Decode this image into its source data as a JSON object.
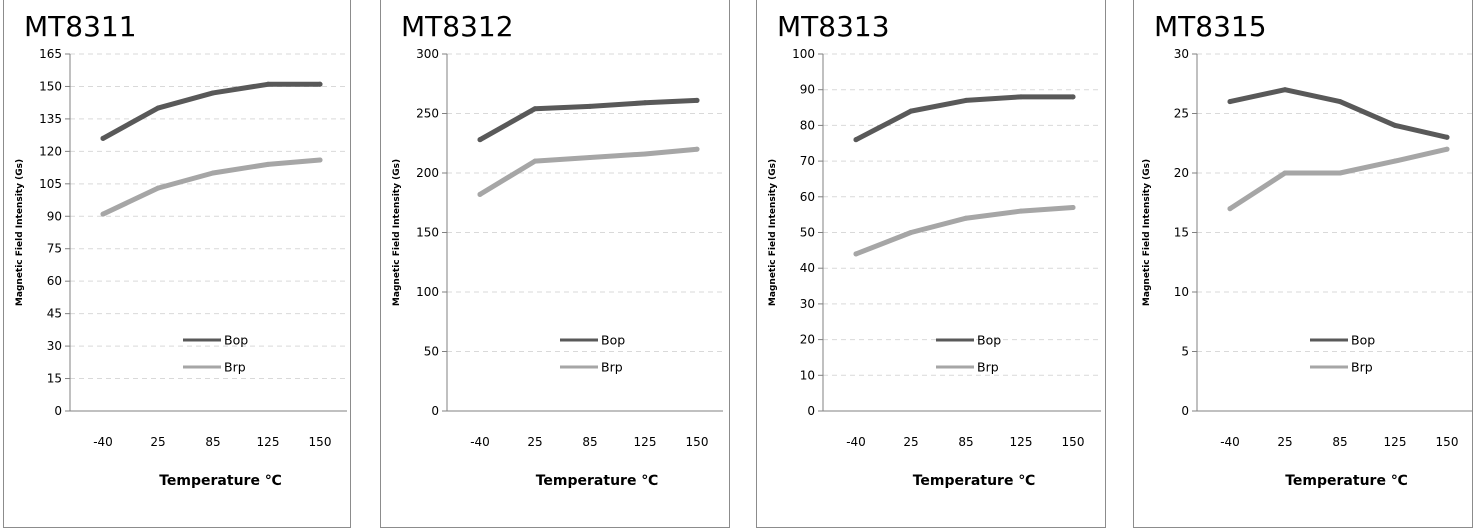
{
  "chart_data": [
    {
      "type": "line",
      "title": "MT8311",
      "xlabel": "Temperature ℃",
      "ylabel": "Magnetic Field Intensity (Gs)",
      "categories": [
        "-40",
        "25",
        "85",
        "125",
        "150"
      ],
      "ylim": [
        0,
        165
      ],
      "yticks": [
        0,
        15,
        30,
        45,
        60,
        75,
        90,
        105,
        120,
        135,
        150,
        165
      ],
      "grid": true,
      "legend": "bottom-right",
      "series": [
        {
          "name": "Bop",
          "values": [
            126,
            140,
            147,
            151,
            151
          ],
          "color": "#595959"
        },
        {
          "name": "Brp",
          "values": [
            91,
            103,
            110,
            114,
            116
          ],
          "color": "#a6a6a6"
        }
      ]
    },
    {
      "type": "line",
      "title": "MT8312",
      "xlabel": "Temperature ℃",
      "ylabel": "Magnetic Field Intensity (Gs)",
      "categories": [
        "-40",
        "25",
        "85",
        "125",
        "150"
      ],
      "ylim": [
        0,
        300
      ],
      "yticks": [
        0,
        50,
        100,
        150,
        200,
        250,
        300
      ],
      "grid": true,
      "legend": "bottom-right",
      "series": [
        {
          "name": "Bop",
          "values": [
            228,
            254,
            256,
            259,
            261
          ],
          "color": "#595959"
        },
        {
          "name": "Brp",
          "values": [
            182,
            210,
            213,
            216,
            220
          ],
          "color": "#a6a6a6"
        }
      ]
    },
    {
      "type": "line",
      "title": "MT8313",
      "xlabel": "Temperature ℃",
      "ylabel": "Magnetic Field Intensity (Gs)",
      "categories": [
        "-40",
        "25",
        "85",
        "125",
        "150"
      ],
      "ylim": [
        0,
        100
      ],
      "yticks": [
        0,
        10,
        20,
        30,
        40,
        50,
        60,
        70,
        80,
        90,
        100
      ],
      "grid": true,
      "legend": "bottom-right",
      "series": [
        {
          "name": "Bop",
          "values": [
            76,
            84,
            87,
            88,
            88
          ],
          "color": "#595959"
        },
        {
          "name": "Brp",
          "values": [
            44,
            50,
            54,
            56,
            57
          ],
          "color": "#a6a6a6"
        }
      ]
    },
    {
      "type": "line",
      "title": "MT8315",
      "xlabel": "Temperature ℃",
      "ylabel": "Magnetic Field Intensity (Gs)",
      "categories": [
        "-40",
        "25",
        "85",
        "125",
        "150"
      ],
      "ylim": [
        0,
        30
      ],
      "yticks": [
        0,
        5,
        10,
        15,
        20,
        25,
        30
      ],
      "grid": true,
      "legend": "bottom-right",
      "series": [
        {
          "name": "Bop",
          "values": [
            26,
            27,
            26,
            24,
            23
          ],
          "color": "#595959"
        },
        {
          "name": "Brp",
          "values": [
            17,
            20,
            20,
            21,
            22
          ],
          "color": "#a6a6a6"
        }
      ]
    }
  ]
}
